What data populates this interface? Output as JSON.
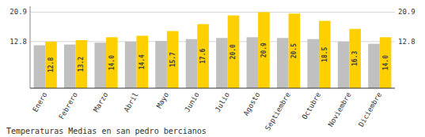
{
  "chart_data": {
    "type": "bar",
    "title": "Temperaturas Medias en san pedro bercianos",
    "categories": [
      "Enero",
      "Febrero",
      "Marzo",
      "Abril",
      "Mayo",
      "Junio",
      "Julio",
      "Agosto",
      "Septiembre",
      "Octubre",
      "Noviembre",
      "Diciembre"
    ],
    "series": [
      {
        "color": "#C0C0C0",
        "values": [
          11.8,
          12.0,
          12.5,
          12.8,
          13.0,
          13.5,
          13.8,
          14.0,
          13.8,
          13.5,
          12.8,
          12.2
        ]
      },
      {
        "color": "#FFD000",
        "values": [
          12.8,
          13.2,
          14.0,
          14.4,
          15.7,
          17.6,
          20.0,
          20.9,
          20.5,
          18.5,
          16.3,
          14.0
        ],
        "value_labels": [
          "12.8",
          "13.2",
          "14.0",
          "14.4",
          "15.7",
          "17.6",
          "20.0",
          "20.9",
          "20.5",
          "18.5",
          "16.3",
          "14.0"
        ],
        "data_labels": true
      }
    ],
    "ylim": [
      0,
      22.5
    ],
    "yticks": [
      12.8,
      20.9
    ],
    "grid": true
  }
}
